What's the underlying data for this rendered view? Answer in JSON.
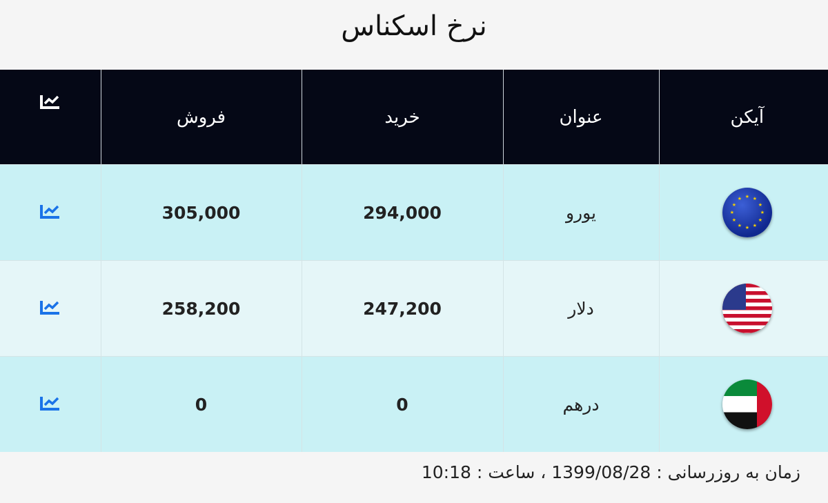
{
  "title": "نرخ اسکناس",
  "headers": {
    "icon": "آیکن",
    "name": "عنوان",
    "buy": "خرید",
    "sell": "فروش",
    "chart": "chart-icon"
  },
  "rows": [
    {
      "flag": "eu-flag-icon",
      "name": "یورو",
      "buy": "294,000",
      "sell": "305,000"
    },
    {
      "flag": "us-flag-icon",
      "name": "دلار",
      "buy": "247,200",
      "sell": "258,200"
    },
    {
      "flag": "uae-flag-icon",
      "name": "درهم",
      "buy": "0",
      "sell": "0"
    }
  ],
  "footer": {
    "text": "زمان به روزرسانی : 1399/08/28 ، ساعت : 10:18"
  },
  "colors": {
    "header_bg": "#050816",
    "row_bg": "#c9f1f5",
    "row_alt_bg": "#e5f6f8",
    "chart_icon": "#1a73e8"
  }
}
